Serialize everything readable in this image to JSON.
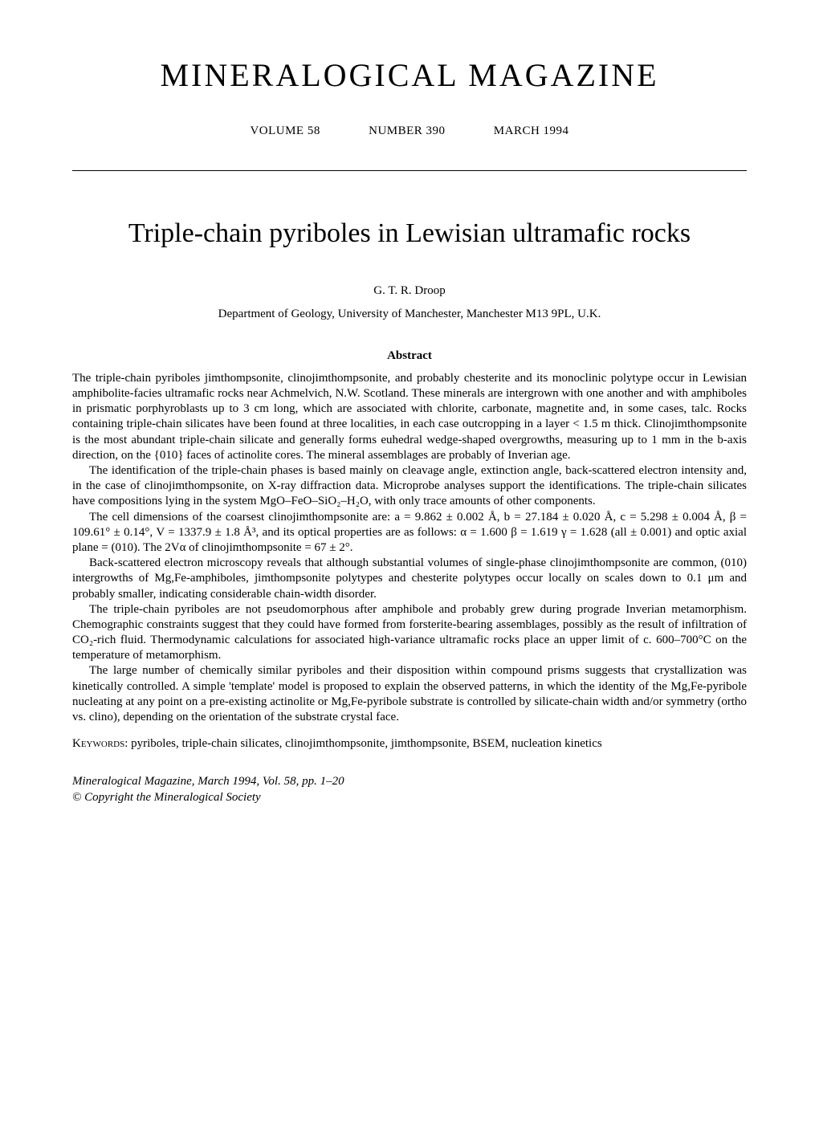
{
  "journal": {
    "title": "MINERALOGICAL MAGAZINE",
    "volume": "VOLUME 58",
    "number": "NUMBER 390",
    "date": "MARCH 1994"
  },
  "article": {
    "title": "Triple-chain pyriboles in Lewisian ultramafic rocks",
    "author": "G. T. R. Droop",
    "affiliation": "Department of Geology, University of Manchester, Manchester M13 9PL, U.K.",
    "abstract_heading": "Abstract",
    "abstract_paragraphs": [
      "The triple-chain pyriboles jimthompsonite, clinojimthompsonite, and probably chesterite and its monoclinic polytype occur in Lewisian amphibolite-facies ultramafic rocks near Achmelvich, N.W. Scotland. These minerals are intergrown with one another and with amphiboles in prismatic porphyroblasts up to 3 cm long, which are associated with chlorite, carbonate, magnetite and, in some cases, talc. Rocks containing triple-chain silicates have been found at three localities, in each case outcropping in a layer < 1.5 m thick. Clinojimthompsonite is the most abundant triple-chain silicate and generally forms euhedral wedge-shaped overgrowths, measuring up to 1 mm in the b-axis direction, on the {010} faces of actinolite cores. The mineral assemblages are probably of Inverian age.",
      "The identification of the triple-chain phases is based mainly on cleavage angle, extinction angle, back-scattered electron intensity and, in the case of clinojimthompsonite, on X-ray diffraction data. Microprobe analyses support the identifications. The triple-chain silicates have compositions lying in the system MgO–FeO–SiO₂–H₂O, with only trace amounts of other components.",
      "The cell dimensions of the coarsest clinojimthompsonite are: a = 9.862 ± 0.002 Å, b = 27.184 ± 0.020 Å, c = 5.298 ± 0.004 Å, β = 109.61° ± 0.14°, V = 1337.9 ± 1.8 Å³, and its optical properties are as follows: α = 1.600 β = 1.619 γ = 1.628 (all ± 0.001) and optic axial plane = (010). The 2Vα of clinojimthompsonite = 67 ± 2°.",
      "Back-scattered electron microscopy reveals that although substantial volumes of single-phase clinojimthompsonite are common, (010) intergrowths of Mg,Fe-amphiboles, jimthompsonite polytypes and chesterite polytypes occur locally on scales down to 0.1 μm and probably smaller, indicating considerable chain-width disorder.",
      "The triple-chain pyriboles are not pseudomorphous after amphibole and probably grew during prograde Inverian metamorphism. Chemographic constraints suggest that they could have formed from forsterite-bearing assemblages, possibly as the result of infiltration of CO₂-rich fluid. Thermodynamic calculations for associated high-variance ultramafic rocks place an upper limit of c. 600–700°C on the temperature of metamorphism.",
      "The large number of chemically similar pyriboles and their disposition within compound prisms suggests that crystallization was kinetically controlled. A simple 'template' model is proposed to explain the observed patterns, in which the identity of the Mg,Fe-pyribole nucleating at any point on a pre-existing actinolite or Mg,Fe-pyribole substrate is controlled by silicate-chain width and/or symmetry (ortho vs. clino), depending on the orientation of the substrate crystal face."
    ],
    "keywords_label": "Keywords:",
    "keywords_text": " pyriboles, triple-chain silicates, clinojimthompsonite, jimthompsonite, BSEM, nucleation kinetics"
  },
  "footer": {
    "citation": "Mineralogical Magazine, March 1994, Vol. 58, pp. 1–20",
    "copyright": "© Copyright the Mineralogical Society"
  },
  "styles": {
    "background_color": "#ffffff",
    "text_color": "#000000",
    "font_family": "Times New Roman, serif",
    "journal_title_fontsize": 40,
    "article_title_fontsize": 34,
    "body_fontsize": 15,
    "rule_color": "#000000"
  }
}
